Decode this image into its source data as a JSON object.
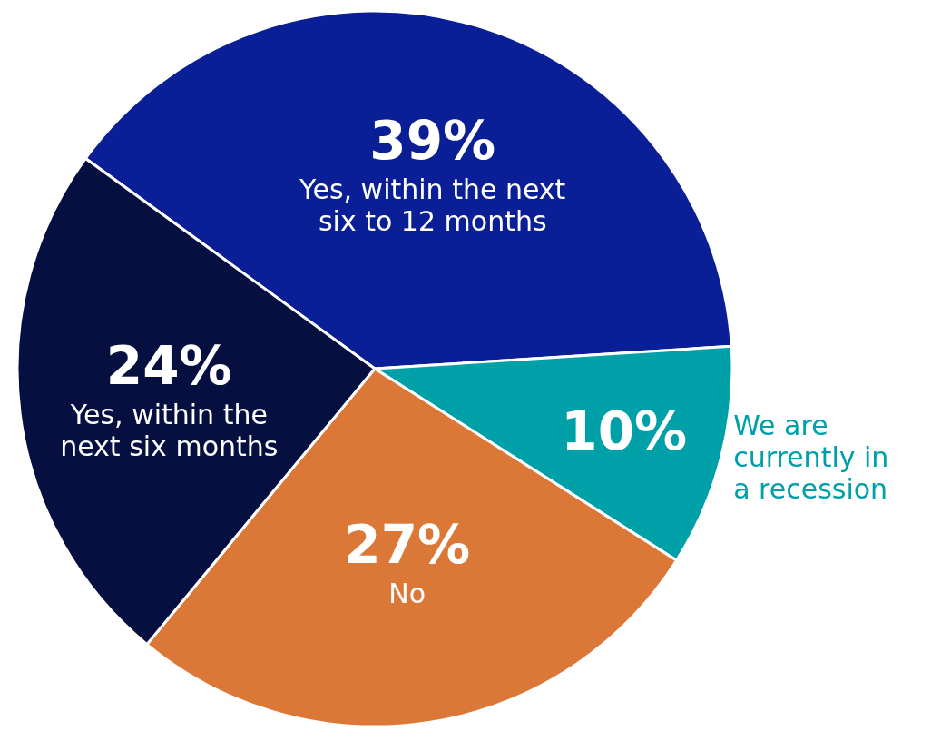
{
  "chart_data": {
    "type": "pie",
    "categories": [
      "Yes, within the next six to 12 months",
      "We are currently in a recession",
      "No",
      "Yes, within the next six months"
    ],
    "values": [
      39,
      10,
      27,
      24
    ],
    "value_labels": [
      "39%",
      "10%",
      "27%",
      "24%"
    ],
    "colors": [
      "#0a1e96",
      "#00a0a8",
      "#dc7837",
      "#050f40"
    ]
  }
}
